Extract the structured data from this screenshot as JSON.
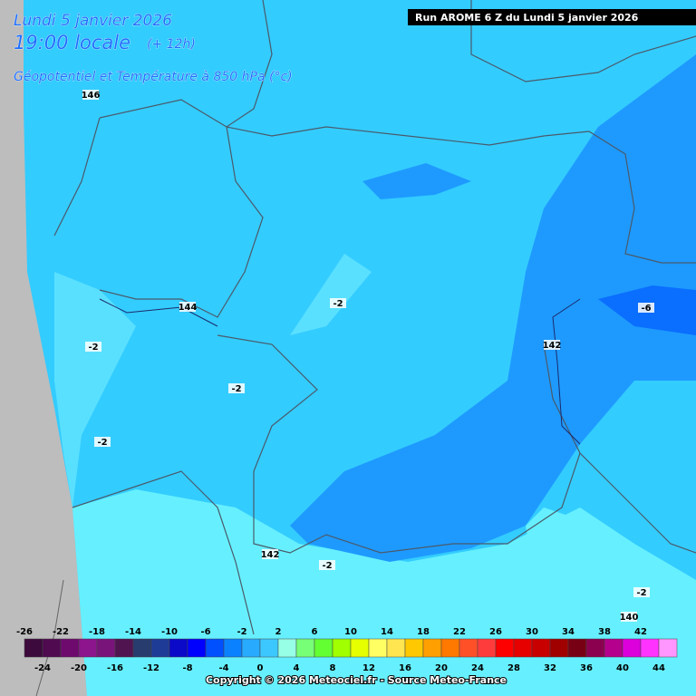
{
  "header": {
    "date_line": "Lundi 5 janvier 2026",
    "time_line": "19:00 locale",
    "forecast_offset": "(+ 12h)",
    "parameter": "Géopotentiel et Température à 850 hPa (°c)",
    "run_label": "Run AROME 6 Z du Lundi 5 janvier 2026"
  },
  "map_labels": [
    "146",
    "144",
    "-2",
    "-2",
    "-2",
    "-2",
    "142",
    "-6",
    "142",
    "-2",
    "-2",
    "140"
  ],
  "colorbar": {
    "levels": [
      -26,
      -24,
      -22,
      -20,
      -18,
      -16,
      -14,
      -12,
      -10,
      -8,
      -6,
      -4,
      -2,
      0,
      2,
      4,
      6,
      8,
      10,
      12,
      14,
      16,
      18,
      20,
      22,
      24,
      26,
      28,
      30,
      32,
      34,
      36,
      38,
      40,
      42,
      44
    ],
    "colors": [
      "#3c0a3c",
      "#500a50",
      "#6e0a6e",
      "#8c148c",
      "#78147a",
      "#501450",
      "#283c6e",
      "#1e3c96",
      "#0a0ac8",
      "#0000ff",
      "#0050ff",
      "#0a82ff",
      "#28aaff",
      "#3cc8ff",
      "#96ffe6",
      "#78ff78",
      "#64ff32",
      "#a0ff00",
      "#e6ff00",
      "#ffff64",
      "#ffe650",
      "#ffc800",
      "#ffa000",
      "#ff7800",
      "#ff5028",
      "#ff3c3c",
      "#ff0000",
      "#e60000",
      "#c80000",
      "#a00000",
      "#780014",
      "#8c0050",
      "#b4008c",
      "#dc00dc",
      "#ff32ff",
      "#ff96ff"
    ]
  },
  "copyright": "Copyright © 2026 Meteociel.fr - Source Meteo-France"
}
